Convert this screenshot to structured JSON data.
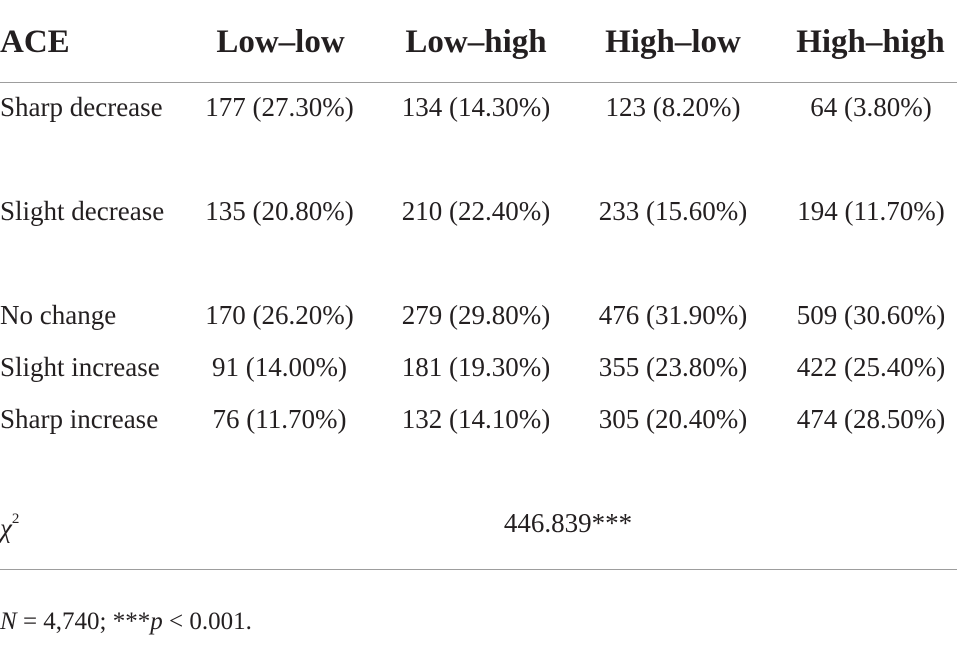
{
  "table": {
    "headers": [
      "ACE",
      "Low–low",
      "Low–high",
      "High–low",
      "High–high"
    ],
    "rows": [
      {
        "label": "Sharp decrease",
        "values": [
          "177 (27.30%)",
          "134 (14.30%)",
          "123 (8.20%)",
          "64 (3.80%)"
        ]
      },
      {
        "label": "Slight decrease",
        "values": [
          "135 (20.80%)",
          "210 (22.40%)",
          "233 (15.60%)",
          "194 (11.70%)"
        ]
      },
      {
        "label": "No change",
        "values": [
          "170 (26.20%)",
          "279 (29.80%)",
          "476 (31.90%)",
          "509 (30.60%)"
        ]
      },
      {
        "label": "Slight increase",
        "values": [
          "91 (14.00%)",
          "181 (19.30%)",
          "355 (23.80%)",
          "422 (25.40%)"
        ]
      },
      {
        "label": "Sharp increase",
        "values": [
          "76 (11.70%)",
          "132 (14.10%)",
          "305 (20.40%)",
          "474 (28.50%)"
        ]
      }
    ],
    "chi_square": {
      "symbol": "χ",
      "superscript": "2",
      "value": "446.839***"
    }
  },
  "footnote": {
    "n_symbol": "N",
    "n_text": " = 4,740; ***",
    "p_symbol": "p",
    "p_text": " < 0.001."
  }
}
